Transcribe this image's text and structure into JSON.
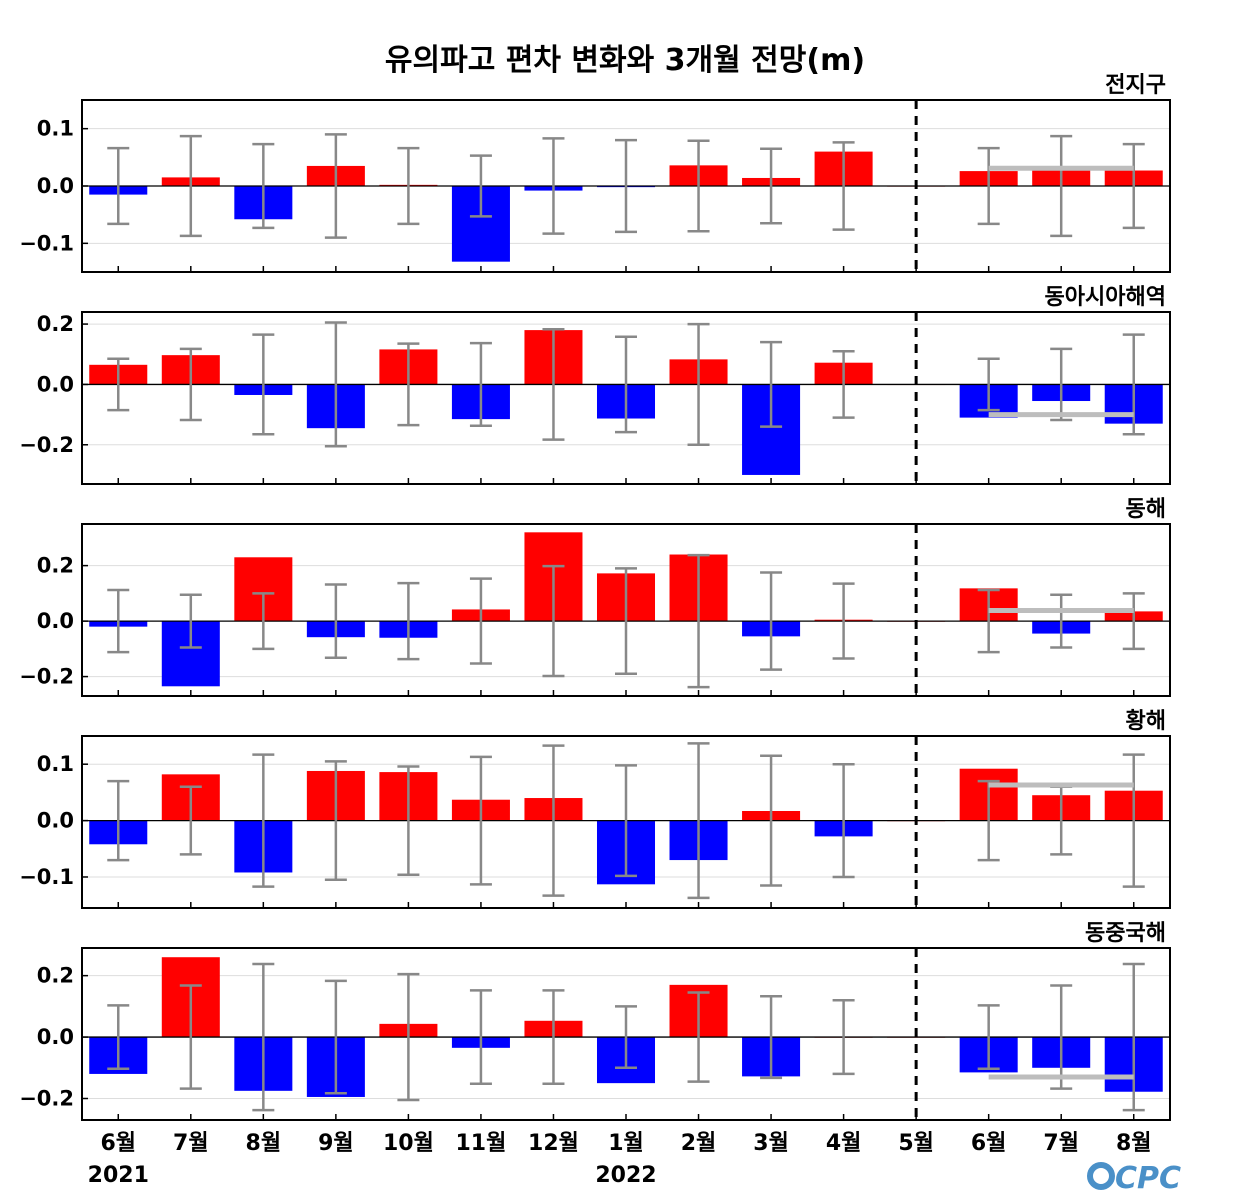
{
  "chart_title": "유의파고 편차 변화와 3개월 전망(m)",
  "logo_text": "CPC",
  "colors": {
    "positive": "#ff0000",
    "negative": "#0000ff",
    "error": "#888888",
    "outlook": "#bdbdbd",
    "frame": "#000000",
    "grid": "#dddddd"
  },
  "x_axis": {
    "months": [
      "6월",
      "7월",
      "8월",
      "9월",
      "10월",
      "11월",
      "12월",
      "1월",
      "2월",
      "3월",
      "4월",
      "5월",
      "6월",
      "7월",
      "8월"
    ],
    "years": [
      {
        "label": "2021",
        "index": 0
      },
      {
        "label": "2022",
        "index": 7
      }
    ],
    "forecast_divider_index": 11
  },
  "chart_data": [
    {
      "type": "bar",
      "title": "전지구",
      "ylim": [
        -0.15,
        0.15
      ],
      "yticks": [
        -0.1,
        0.0,
        0.1
      ],
      "ytick_labels": [
        "−0.1",
        "0.0",
        "0.1"
      ],
      "values": [
        -0.015,
        0.015,
        -0.058,
        0.035,
        0.002,
        -0.132,
        -0.008,
        -0.002,
        0.036,
        0.014,
        0.06,
        0.0,
        0.026,
        0.03,
        0.027
      ],
      "error_bars": [
        [
          -0.066,
          0.066
        ],
        [
          -0.087,
          0.087
        ],
        [
          -0.073,
          0.073
        ],
        [
          -0.09,
          0.09
        ],
        [
          -0.066,
          0.066
        ],
        [
          -0.053,
          0.053
        ],
        [
          -0.083,
          0.083
        ],
        [
          -0.08,
          0.08
        ],
        [
          -0.079,
          0.079
        ],
        [
          -0.065,
          0.065
        ],
        [
          -0.076,
          0.076
        ],
        null,
        [
          -0.066,
          0.066
        ],
        [
          -0.087,
          0.087
        ],
        [
          -0.073,
          0.073
        ]
      ],
      "outlook": 0.031
    },
    {
      "type": "bar",
      "title": "동아시아해역",
      "ylim": [
        -0.33,
        0.24
      ],
      "yticks": [
        -0.2,
        0.0,
        0.2
      ],
      "ytick_labels": [
        "−0.2",
        "0.0",
        "0.2"
      ],
      "values": [
        0.065,
        0.097,
        -0.035,
        -0.145,
        0.116,
        -0.115,
        0.18,
        -0.113,
        0.083,
        -0.3,
        0.072,
        0.0,
        -0.11,
        -0.055,
        -0.13
      ],
      "error_bars": [
        [
          -0.085,
          0.085
        ],
        [
          -0.118,
          0.118
        ],
        [
          -0.165,
          0.165
        ],
        [
          -0.205,
          0.205
        ],
        [
          -0.135,
          0.135
        ],
        [
          -0.137,
          0.137
        ],
        [
          -0.183,
          0.183
        ],
        [
          -0.158,
          0.158
        ],
        [
          -0.2,
          0.2
        ],
        [
          -0.14,
          0.14
        ],
        [
          -0.11,
          0.11
        ],
        null,
        [
          -0.085,
          0.085
        ],
        [
          -0.118,
          0.118
        ],
        [
          -0.165,
          0.165
        ]
      ],
      "outlook": -0.1
    },
    {
      "type": "bar",
      "title": "동해",
      "ylim": [
        -0.27,
        0.35
      ],
      "yticks": [
        -0.2,
        0.0,
        0.2
      ],
      "ytick_labels": [
        "−0.2",
        "0.0",
        "0.2"
      ],
      "values": [
        -0.02,
        -0.235,
        0.23,
        -0.058,
        -0.06,
        0.042,
        0.32,
        0.172,
        0.24,
        -0.055,
        0.005,
        0.0,
        0.118,
        -0.045,
        0.035
      ],
      "error_bars": [
        [
          -0.112,
          0.112
        ],
        [
          -0.095,
          0.095
        ],
        [
          -0.1,
          0.1
        ],
        [
          -0.132,
          0.132
        ],
        [
          -0.137,
          0.137
        ],
        [
          -0.153,
          0.153
        ],
        [
          -0.198,
          0.198
        ],
        [
          -0.19,
          0.19
        ],
        [
          -0.238,
          0.238
        ],
        [
          -0.175,
          0.175
        ],
        [
          -0.135,
          0.135
        ],
        null,
        [
          -0.112,
          0.112
        ],
        [
          -0.095,
          0.095
        ],
        [
          -0.1,
          0.1
        ]
      ],
      "outlook": 0.038
    },
    {
      "type": "bar",
      "title": "황해",
      "ylim": [
        -0.155,
        0.15
      ],
      "yticks": [
        -0.1,
        0.0,
        0.1
      ],
      "ytick_labels": [
        "−0.1",
        "0.0",
        "0.1"
      ],
      "values": [
        -0.042,
        0.082,
        -0.092,
        0.088,
        0.086,
        0.037,
        0.04,
        -0.113,
        -0.07,
        0.017,
        -0.028,
        0.0,
        0.092,
        0.045,
        0.053
      ],
      "error_bars": [
        [
          -0.07,
          0.07
        ],
        [
          -0.06,
          0.06
        ],
        [
          -0.117,
          0.117
        ],
        [
          -0.105,
          0.105
        ],
        [
          -0.096,
          0.096
        ],
        [
          -0.113,
          0.113
        ],
        [
          -0.133,
          0.133
        ],
        [
          -0.098,
          0.098
        ],
        [
          -0.137,
          0.137
        ],
        [
          -0.115,
          0.115
        ],
        [
          -0.1,
          0.1
        ],
        null,
        [
          -0.07,
          0.07
        ],
        [
          -0.06,
          0.06
        ],
        [
          -0.117,
          0.117
        ]
      ],
      "outlook": 0.063
    },
    {
      "type": "bar",
      "title": "동중국해",
      "ylim": [
        -0.27,
        0.29
      ],
      "yticks": [
        -0.2,
        0.0,
        0.2
      ],
      "ytick_labels": [
        "−0.2",
        "0.0",
        "0.2"
      ],
      "values": [
        -0.12,
        0.26,
        -0.175,
        -0.195,
        0.043,
        -0.035,
        0.053,
        -0.15,
        0.17,
        -0.128,
        0.0,
        0.0,
        -0.115,
        -0.1,
        -0.178
      ],
      "error_bars": [
        [
          -0.103,
          0.103
        ],
        [
          -0.168,
          0.168
        ],
        [
          -0.238,
          0.238
        ],
        [
          -0.183,
          0.183
        ],
        [
          -0.205,
          0.205
        ],
        [
          -0.152,
          0.152
        ],
        [
          -0.152,
          0.152
        ],
        [
          -0.1,
          0.1
        ],
        [
          -0.145,
          0.145
        ],
        [
          -0.133,
          0.133
        ],
        [
          -0.12,
          0.12
        ],
        null,
        [
          -0.103,
          0.103
        ],
        [
          -0.168,
          0.168
        ],
        [
          -0.238,
          0.238
        ]
      ],
      "outlook": -0.13
    }
  ]
}
